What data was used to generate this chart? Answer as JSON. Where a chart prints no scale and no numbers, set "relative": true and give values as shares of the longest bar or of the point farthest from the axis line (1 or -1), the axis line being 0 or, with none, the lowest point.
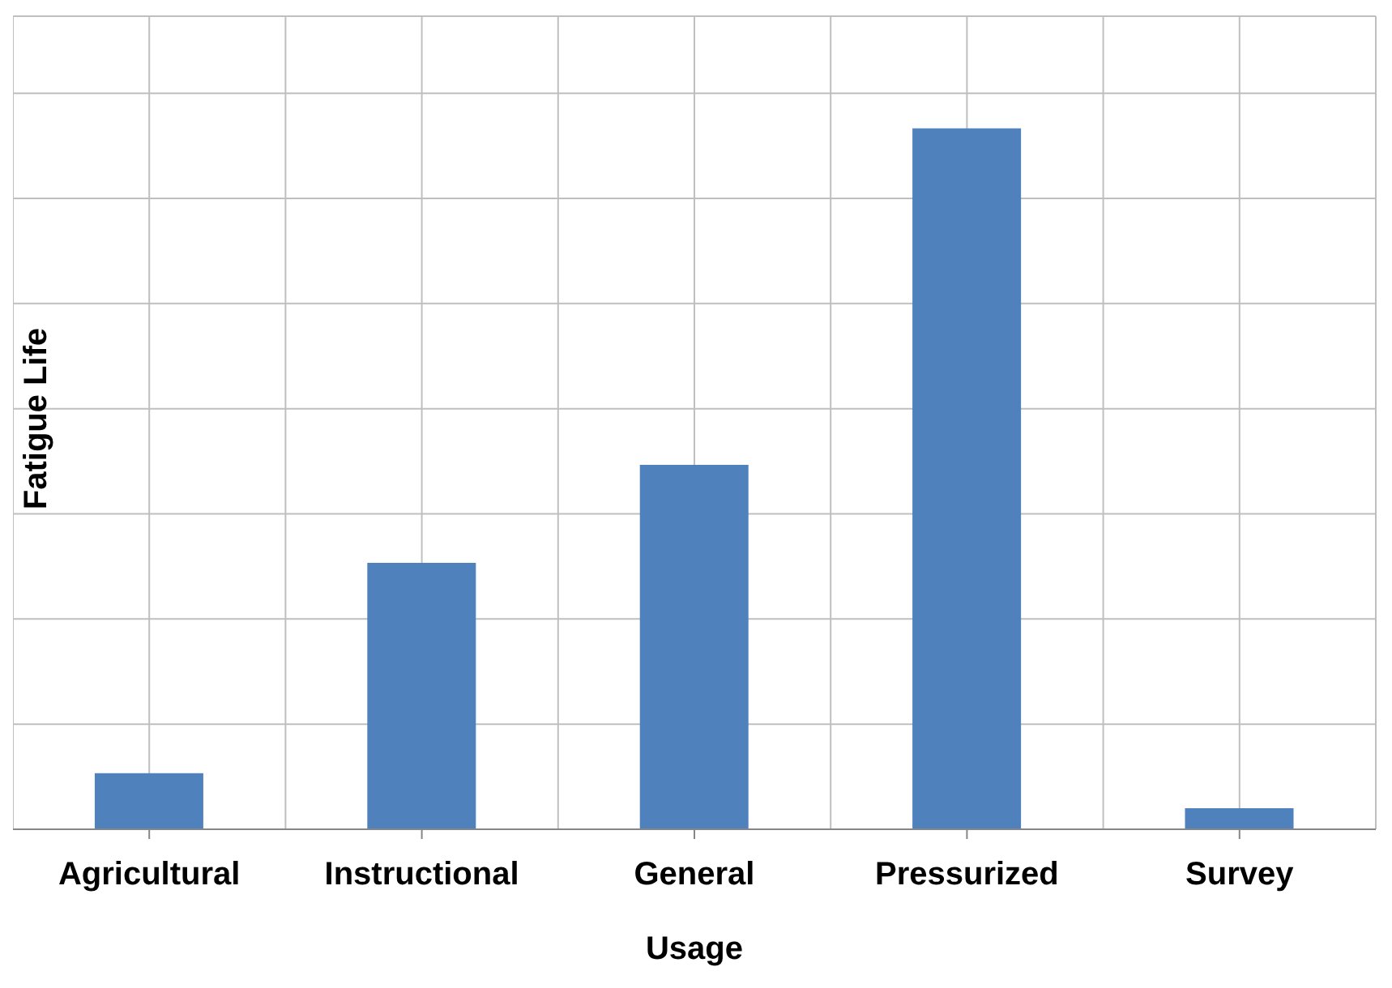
{
  "chart_data": {
    "type": "bar",
    "xlabel": "Usage",
    "ylabel": "Fatigue Life",
    "categories": [
      "Agricultural",
      "Instructional",
      "General",
      "Pressurized",
      "Survey"
    ],
    "values": [
      0.08,
      0.38,
      0.52,
      1,
      0.03
    ],
    "color": "#4f81bd",
    "relative": true,
    "grid": true
  }
}
